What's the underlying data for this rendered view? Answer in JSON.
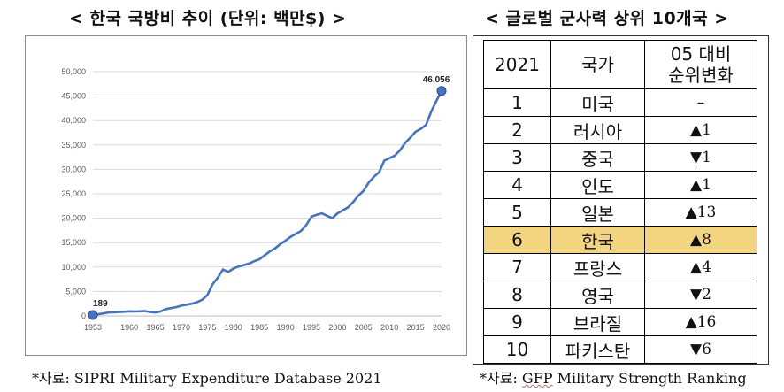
{
  "left_panel": {
    "title": "< 한국 국방비 추이 (단위: 백만$) >",
    "source_prefix": "*자료: ",
    "source_name": "SIPRI Military Expenditure Database 2021"
  },
  "right_panel": {
    "title": "< 글로벌 군사력 상위 10개국 >",
    "table": {
      "headers": [
        "2021",
        "국가",
        "05 대비 순위변화"
      ],
      "header_line1": "05 대비",
      "header_line2": "순위변화",
      "rows": [
        {
          "rank": "1",
          "country": "미국",
          "change": "–"
        },
        {
          "rank": "2",
          "country": "러시아",
          "change": "▲1"
        },
        {
          "rank": "3",
          "country": "중국",
          "change": "▼1"
        },
        {
          "rank": "4",
          "country": "인도",
          "change": "▲1"
        },
        {
          "rank": "5",
          "country": "일본",
          "change": "▲13"
        },
        {
          "rank": "6",
          "country": "한국",
          "change": "▲8",
          "highlight": true
        },
        {
          "rank": "7",
          "country": "프랑스",
          "change": "▲4"
        },
        {
          "rank": "8",
          "country": "영국",
          "change": "▼2"
        },
        {
          "rank": "9",
          "country": "브라질",
          "change": "▲16"
        },
        {
          "rank": "10",
          "country": "파키스탄",
          "change": "▼6"
        }
      ],
      "highlight_color": "#f3d57f"
    },
    "source_prefix": "*자료: ",
    "source_gfp": "GFP",
    "source_rest": " Military Strength Ranking"
  },
  "chart_data": {
    "type": "line",
    "title": "",
    "xlabel": "",
    "ylabel": "",
    "xlim": [
      1953,
      2020
    ],
    "ylim": [
      0,
      50000
    ],
    "x_ticks": [
      1953,
      1960,
      1965,
      1970,
      1975,
      1980,
      1985,
      1990,
      1995,
      2000,
      2005,
      2010,
      2015,
      2020
    ],
    "y_ticks": [
      0,
      5000,
      10000,
      15000,
      20000,
      25000,
      30000,
      35000,
      40000,
      45000,
      50000
    ],
    "y_tick_labels": [
      "0",
      "5,000",
      "10,000",
      "15,000",
      "20,000",
      "25,000",
      "30,000",
      "35,000",
      "40,000",
      "45,000",
      "50,000"
    ],
    "grid": true,
    "line_color": "#4472c4",
    "series": [
      {
        "x": [
          1953,
          1954,
          1955,
          1956,
          1957,
          1958,
          1959,
          1960,
          1961,
          1962,
          1963,
          1964,
          1965,
          1966,
          1967,
          1968,
          1969,
          1970,
          1971,
          1972,
          1973,
          1974,
          1975,
          1976,
          1977,
          1978,
          1979,
          1980,
          1981,
          1982,
          1983,
          1984,
          1985,
          1986,
          1987,
          1988,
          1989,
          1990,
          1991,
          1992,
          1993,
          1994,
          1995,
          1996,
          1997,
          1998,
          1999,
          2000,
          2001,
          2002,
          2003,
          2004,
          2005,
          2006,
          2007,
          2008,
          2009,
          2010,
          2011,
          2012,
          2013,
          2014,
          2015,
          2016,
          2017,
          2018,
          2019,
          2020
        ],
        "y": [
          189,
          350,
          500,
          700,
          750,
          800,
          850,
          950,
          900,
          950,
          1000,
          800,
          700,
          900,
          1400,
          1600,
          1800,
          2100,
          2300,
          2500,
          2800,
          3300,
          4300,
          6500,
          7800,
          9500,
          9000,
          9700,
          10100,
          10400,
          10700,
          11200,
          11600,
          12400,
          13200,
          13800,
          14700,
          15400,
          16200,
          16800,
          17400,
          18600,
          20300,
          20700,
          21000,
          20500,
          20000,
          21000,
          21600,
          22200,
          23300,
          24600,
          25600,
          27300,
          28500,
          29400,
          31800,
          32300,
          32800,
          33900,
          35400,
          36500,
          37700,
          38300,
          39100,
          41800,
          44000,
          46056
        ]
      }
    ],
    "annotations": [
      {
        "x": 1953,
        "y": 189,
        "label": "189"
      },
      {
        "x": 2020,
        "y": 46056,
        "label": "46,056"
      }
    ]
  }
}
